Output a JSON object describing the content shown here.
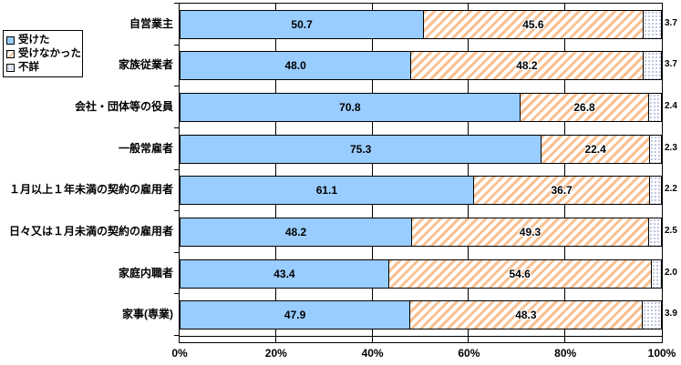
{
  "chart_data": {
    "type": "bar",
    "orientation": "horizontal-stacked",
    "title": "",
    "categories": [
      "自営業主",
      "家族従業者",
      "会社・団体等の役員",
      "一般常雇者",
      "１月以上１年未満の契約の雇用者",
      "日々又は１月未満の契約の雇用者",
      "家庭内職者",
      "家事(専業)"
    ],
    "series": [
      {
        "name": "受けた",
        "pattern": "solid",
        "color": "#99CCFF",
        "values": [
          50.7,
          48.0,
          70.8,
          75.3,
          61.1,
          48.2,
          43.4,
          47.9
        ]
      },
      {
        "name": "受けなかった",
        "pattern": "diagonal-hatch",
        "color": "#FAC090",
        "values": [
          45.6,
          48.2,
          26.8,
          22.4,
          36.7,
          49.3,
          54.6,
          48.3
        ]
      },
      {
        "name": "不詳",
        "pattern": "dotted",
        "color": "#A9B3D9",
        "values": [
          3.7,
          3.7,
          2.4,
          2.3,
          2.2,
          2.5,
          2.0,
          3.9
        ]
      }
    ],
    "x_ticks": [
      "0%",
      "20%",
      "40%",
      "60%",
      "80%",
      "100%"
    ],
    "xlim": [
      0,
      100
    ],
    "grid": true,
    "legend_position": "left-top"
  },
  "colors": {
    "bar_blue": "#99CCFF",
    "hatch_orange": "#FAC090",
    "dot_blue": "#A9B3D9",
    "line": "#000000",
    "background": "#FFFFFF"
  }
}
